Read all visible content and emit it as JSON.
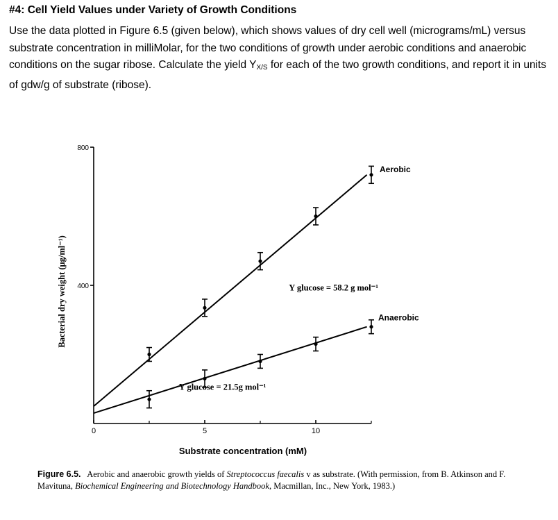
{
  "question": {
    "title": "#4:  Cell Yield Values under Variety of Growth Conditions",
    "body_before_sub": "Use the data plotted in Figure 6.5 (given below), which shows values of dry cell well (micrograms/mL) versus substrate concentration in milliMolar, for the two conditions of growth under aerobic conditions and anaerobic conditions on the sugar ribose.  Calculate the yield Y",
    "body_sub": "X/S",
    "body_after_sub": " for each of the two growth conditions, and report it in units of gdw/g of substrate (ribose)."
  },
  "chart_data": {
    "type": "line",
    "xlabel": "Substrate concentration (mM)",
    "ylabel": "Bacterial dry weight (μg/ml⁻¹)",
    "x_ticks": [
      {
        "value": 0,
        "label": "0"
      },
      {
        "value": 5,
        "label": "5"
      },
      {
        "value": 10,
        "label": "10"
      }
    ],
    "y_ticks": [
      {
        "value": 400,
        "label": "400"
      },
      {
        "value": 800,
        "label": "800"
      }
    ],
    "xlim": [
      0,
      12.5
    ],
    "ylim": [
      0,
      800
    ],
    "series": [
      {
        "name": "Aerobic",
        "line": [
          [
            0,
            50
          ],
          [
            12.3,
            720
          ]
        ],
        "points": [
          {
            "x": 2.5,
            "y": 200,
            "err": 20
          },
          {
            "x": 5.0,
            "y": 335,
            "err": 25
          },
          {
            "x": 7.5,
            "y": 470,
            "err": 25
          },
          {
            "x": 10.0,
            "y": 600,
            "err": 25
          },
          {
            "x": 12.5,
            "y": 720,
            "err": 25
          }
        ],
        "annotation": "Y glucose = 58.2 g mol⁻¹"
      },
      {
        "name": "Anaerobic",
        "line": [
          [
            0,
            30
          ],
          [
            12.3,
            280
          ]
        ],
        "points": [
          {
            "x": 2.5,
            "y": 70,
            "err": 25
          },
          {
            "x": 5.0,
            "y": 130,
            "err": 25
          },
          {
            "x": 7.5,
            "y": 180,
            "err": 20
          },
          {
            "x": 10.0,
            "y": 230,
            "err": 20
          },
          {
            "x": 12.5,
            "y": 280,
            "err": 20
          }
        ],
        "annotation": "Y glucose = 21.5g mol⁻¹"
      }
    ],
    "grid": false
  },
  "caption": {
    "label": "Figure 6.5.",
    "text_1": "Aerobic and anaerobic growth yields of ",
    "species": "Streptococcus faecalis",
    "text_2": " v as substrate. (With permission, from B. Atkinson and F. Mavituna, ",
    "book": "Biochemical Engineering and Biotechnology Handbook",
    "text_3": ", Macmillan, Inc., New York, 1983.)"
  }
}
